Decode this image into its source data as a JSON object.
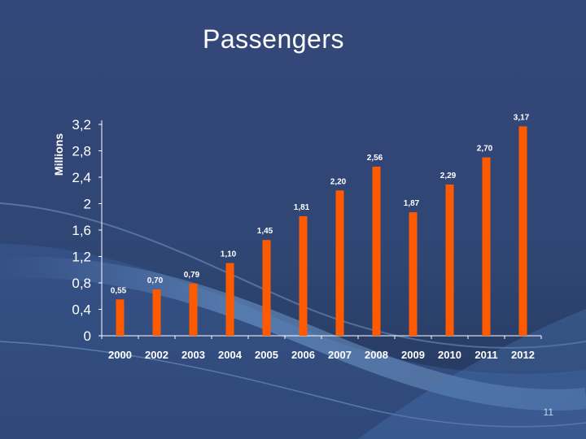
{
  "slide": {
    "title": "Passengers",
    "page_number": "11"
  },
  "colors": {
    "bar": "#ff5a00",
    "text": "#ffffff",
    "background": "#2f4470"
  },
  "chart_data": {
    "type": "bar",
    "title": "Passengers",
    "ylabel": "Millions",
    "xlabel": "",
    "categories": [
      "2000",
      "2002",
      "2003",
      "2004",
      "2005",
      "2006",
      "2007",
      "2008",
      "2009",
      "2010",
      "2011",
      "2012"
    ],
    "values": [
      0.55,
      0.7,
      0.79,
      1.1,
      1.45,
      1.81,
      2.2,
      2.56,
      1.87,
      2.29,
      2.7,
      3.17
    ],
    "value_labels": [
      "0,55",
      "0,70",
      "0,79",
      "1,10",
      "1,45",
      "1,81",
      "2,20",
      "2,56",
      "1,87",
      "2,29",
      "2,70",
      "3,17"
    ],
    "yticks": [
      "0",
      "0,4",
      "0,8",
      "1,2",
      "1,6",
      "2",
      "2,4",
      "2,8",
      "3,2"
    ],
    "ytick_values": [
      0,
      0.4,
      0.8,
      1.2,
      1.6,
      2.0,
      2.4,
      2.8,
      3.2
    ],
    "ylim": [
      0,
      3.2
    ],
    "grid": false,
    "legend": "none"
  }
}
